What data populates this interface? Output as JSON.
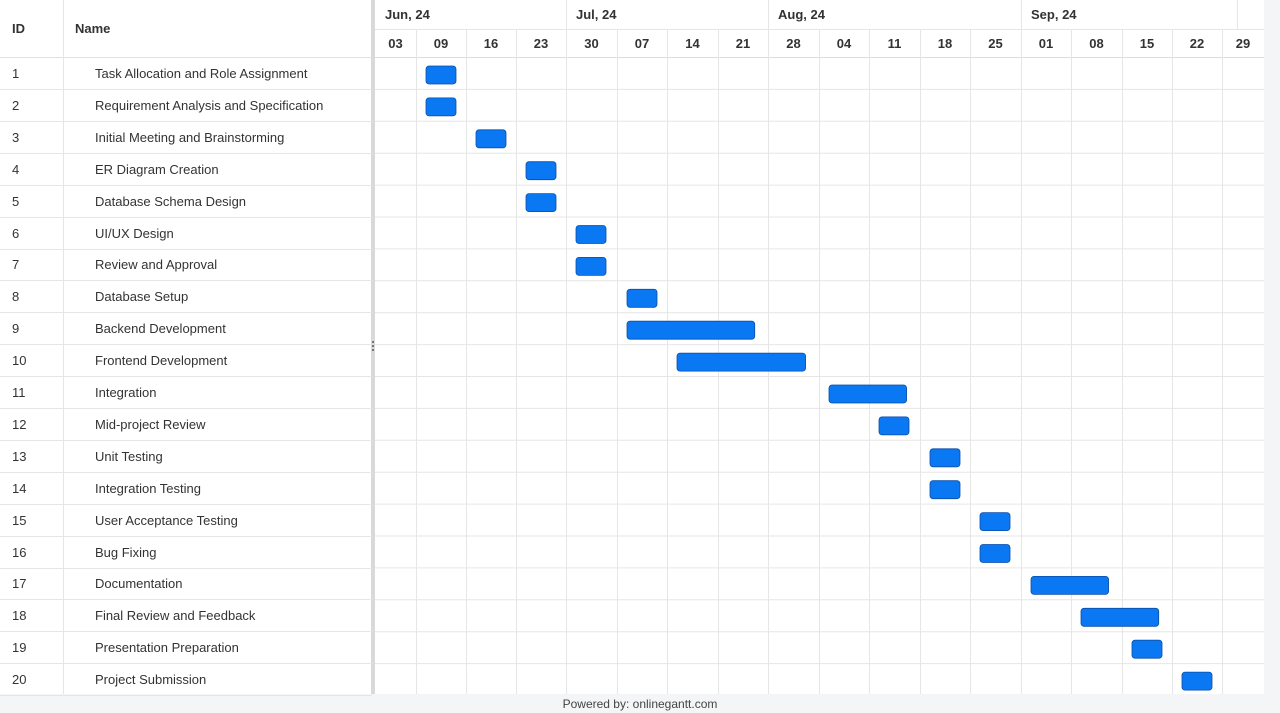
{
  "grid": {
    "id_header": "ID",
    "name_header": "Name"
  },
  "timeline": {
    "months": [
      {
        "label": "Jun, 24",
        "start_week": 0
      },
      {
        "label": "Jul, 24",
        "start_week": 4
      },
      {
        "label": "Aug, 24",
        "start_week": 8
      },
      {
        "label": "Sep, 24",
        "start_week": 13
      }
    ],
    "weeks": [
      "03",
      "09",
      "16",
      "23",
      "30",
      "07",
      "14",
      "21",
      "28",
      "04",
      "11",
      "18",
      "25",
      "01",
      "08",
      "15",
      "22",
      "29"
    ]
  },
  "chart_data": {
    "type": "gantt",
    "bar_color": "#0a78f2",
    "tasks": [
      {
        "id": "1",
        "name": "Task Allocation and Role Assignment",
        "start": "2024-06-09",
        "end": "2024-06-15"
      },
      {
        "id": "2",
        "name": "Requirement Analysis and Specification",
        "start": "2024-06-09",
        "end": "2024-06-15"
      },
      {
        "id": "3",
        "name": "Initial Meeting and Brainstorming",
        "start": "2024-06-16",
        "end": "2024-06-22"
      },
      {
        "id": "4",
        "name": "ER Diagram Creation",
        "start": "2024-06-23",
        "end": "2024-06-29"
      },
      {
        "id": "5",
        "name": "Database Schema Design",
        "start": "2024-06-23",
        "end": "2024-06-29"
      },
      {
        "id": "6",
        "name": "UI/UX Design",
        "start": "2024-06-30",
        "end": "2024-07-06"
      },
      {
        "id": "7",
        "name": "Review and Approval",
        "start": "2024-06-30",
        "end": "2024-07-06"
      },
      {
        "id": "8",
        "name": "Database Setup",
        "start": "2024-07-07",
        "end": "2024-07-13"
      },
      {
        "id": "9",
        "name": "Backend Development",
        "start": "2024-07-07",
        "end": "2024-07-27"
      },
      {
        "id": "10",
        "name": "Frontend Development",
        "start": "2024-07-14",
        "end": "2024-08-03"
      },
      {
        "id": "11",
        "name": "Integration",
        "start": "2024-08-04",
        "end": "2024-08-17"
      },
      {
        "id": "12",
        "name": "Mid-project Review",
        "start": "2024-08-11",
        "end": "2024-08-17"
      },
      {
        "id": "13",
        "name": "Unit Testing",
        "start": "2024-08-18",
        "end": "2024-08-24"
      },
      {
        "id": "14",
        "name": "Integration Testing",
        "start": "2024-08-18",
        "end": "2024-08-24"
      },
      {
        "id": "15",
        "name": "User Acceptance Testing",
        "start": "2024-08-25",
        "end": "2024-08-31"
      },
      {
        "id": "16",
        "name": "Bug Fixing",
        "start": "2024-08-25",
        "end": "2024-08-31"
      },
      {
        "id": "17",
        "name": "Documentation",
        "start": "2024-09-01",
        "end": "2024-09-14"
      },
      {
        "id": "18",
        "name": "Final Review and Feedback",
        "start": "2024-09-08",
        "end": "2024-09-21"
      },
      {
        "id": "19",
        "name": "Presentation Preparation",
        "start": "2024-09-15",
        "end": "2024-09-21"
      },
      {
        "id": "20",
        "name": "Project Submission",
        "start": "2024-09-22",
        "end": "2024-09-28"
      }
    ]
  },
  "footer": {
    "text": "Powered by: onlinegantt.com"
  }
}
